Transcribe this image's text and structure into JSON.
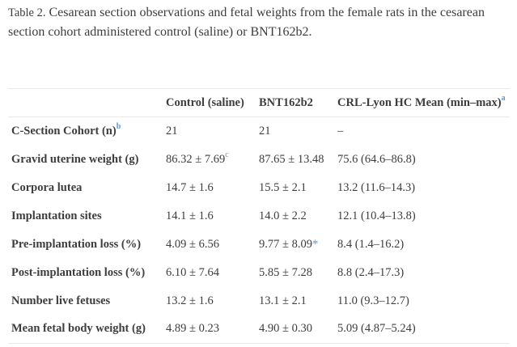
{
  "caption": {
    "label": "Table 2.",
    "text": "Cesarean section observations and fetal weights from the female rats in the cesarean section cohort administered control (saline) or BNT162b2."
  },
  "colors": {
    "text": "#3d3d3d",
    "superscript_blue": "#5b9bd5",
    "border": "#e9e9e9",
    "background": "#ffffff"
  },
  "table": {
    "columns": [
      {
        "label": "",
        "sup": ""
      },
      {
        "label": "Control (saline)",
        "sup": ""
      },
      {
        "label": "BNT162b2",
        "sup": ""
      },
      {
        "label": "CRL-Lyon HC Mean (min–max)",
        "sup": "a"
      }
    ],
    "rows": [
      {
        "label": "C-Section Cohort (n)",
        "label_sup": "b",
        "cells": [
          {
            "text": "21"
          },
          {
            "text": "21"
          },
          {
            "text": "–"
          }
        ]
      },
      {
        "label": "Gravid uterine weight (g)",
        "label_sup": "",
        "cells": [
          {
            "text": "86.32 ± 7.69",
            "sup": "c"
          },
          {
            "text": "87.65 ± 13.48"
          },
          {
            "text": "75.6 (64.6–86.8)"
          }
        ]
      },
      {
        "label": "Corpora lutea",
        "label_sup": "",
        "cells": [
          {
            "text": "14.7 ± 1.6"
          },
          {
            "text": "15.5 ± 2.1"
          },
          {
            "text": "13.2 (11.6–14.3)"
          }
        ]
      },
      {
        "label": "Implantation sites",
        "label_sup": "",
        "cells": [
          {
            "text": "14.1 ± 1.6"
          },
          {
            "text": "14.0 ± 2.2"
          },
          {
            "text": "12.1 (10.4–13.8)"
          }
        ]
      },
      {
        "label": "Pre-implantation loss (%)",
        "label_sup": "",
        "cells": [
          {
            "text": "4.09 ± 6.56"
          },
          {
            "text": "9.77 ± 8.09",
            "mark": "*"
          },
          {
            "text": "8.4 (1.4–16.2)"
          }
        ]
      },
      {
        "label": "Post-implantation loss (%)",
        "label_sup": "",
        "cells": [
          {
            "text": "6.10 ± 7.64"
          },
          {
            "text": "5.85 ± 7.28"
          },
          {
            "text": "8.8 (2.4–17.3)"
          }
        ]
      },
      {
        "label": "Number live fetuses",
        "label_sup": "",
        "cells": [
          {
            "text": "13.2 ± 1.6"
          },
          {
            "text": "13.1 ± 2.1"
          },
          {
            "text": "11.0 (9.3–12.7)"
          }
        ]
      },
      {
        "label": "Mean fetal body weight (g)",
        "label_sup": "",
        "cells": [
          {
            "text": "4.89 ± 0.23"
          },
          {
            "text": "4.90 ± 0.30"
          },
          {
            "text": "5.09 (4.87–5.24)"
          }
        ]
      }
    ]
  }
}
